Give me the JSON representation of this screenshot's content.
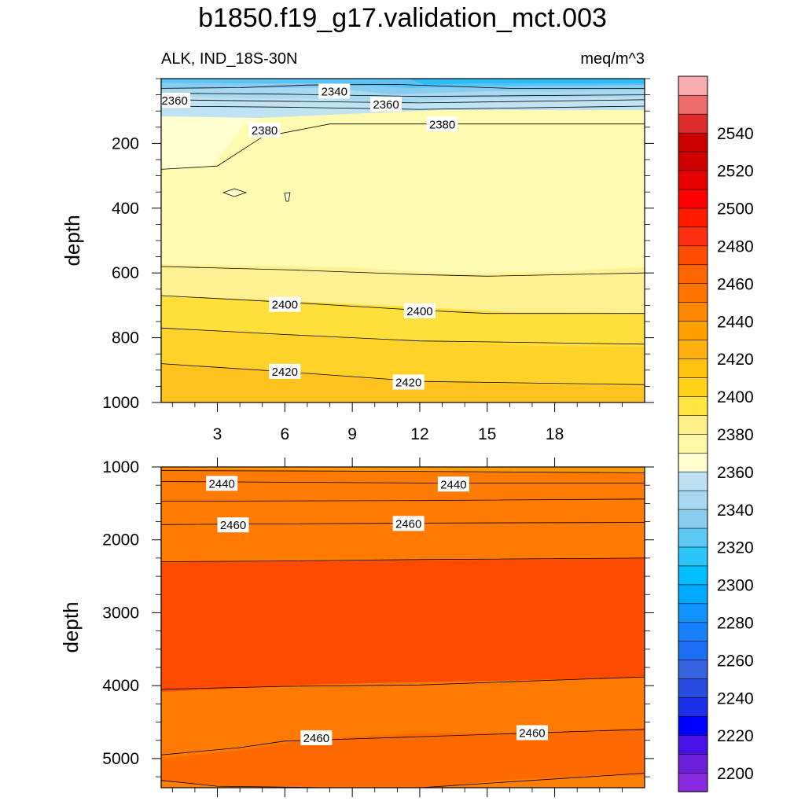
{
  "page_title": "b1850.f19_g17.validation_mct.003",
  "chart_data": [
    {
      "type": "contour",
      "panel": "upper",
      "title": "b1850.f19_g17.validation_mct.003",
      "left_subtitle": "ALK, IND_18S-30N",
      "right_subtitle": "meq/m^3",
      "xlabel": "",
      "ylabel": "depth",
      "xlim": [
        0.5,
        22
      ],
      "ylim": [
        0,
        1000
      ],
      "y_inverted": true,
      "x_ticks": [
        3,
        6,
        9,
        12,
        15,
        18
      ],
      "x_tick_labels": [
        "3",
        "6",
        "9",
        "12",
        "15",
        "18"
      ],
      "y_ticks": [
        200,
        400,
        600,
        800,
        1000
      ],
      "y_tick_labels": [
        "200",
        "400",
        "600",
        "800",
        "1000"
      ],
      "contour_lines": [
        {
          "level": 2340,
          "x": [
            0.5,
            4,
            7,
            11,
            16,
            22
          ],
          "depth": [
            30,
            28,
            20,
            18,
            30,
            30
          ]
        },
        {
          "level": 2350,
          "x": [
            0.5,
            6,
            12,
            22
          ],
          "depth": [
            45,
            48,
            55,
            50
          ]
        },
        {
          "level": 2360,
          "x": [
            0.5,
            6,
            12,
            22
          ],
          "depth": [
            65,
            70,
            75,
            65
          ]
        },
        {
          "level": 2370,
          "x": [
            0.5,
            6,
            12,
            22
          ],
          "depth": [
            85,
            88,
            95,
            85
          ]
        },
        {
          "level": 2380,
          "x": [
            0.5,
            3,
            5,
            8,
            12,
            22
          ],
          "depth": [
            280,
            270,
            180,
            140,
            140,
            140
          ]
        },
        {
          "level": 2390,
          "x": [
            0.5,
            6,
            12,
            15,
            22
          ],
          "depth": [
            580,
            590,
            605,
            610,
            600
          ]
        },
        {
          "level": 2400,
          "x": [
            0.5,
            6,
            12,
            15,
            22
          ],
          "depth": [
            670,
            690,
            715,
            725,
            725
          ]
        },
        {
          "level": 2410,
          "x": [
            0.5,
            6,
            12,
            22
          ],
          "depth": [
            770,
            790,
            810,
            820
          ]
        },
        {
          "level": 2420,
          "x": [
            0.5,
            6,
            12,
            22
          ],
          "depth": [
            880,
            905,
            935,
            945
          ]
        }
      ],
      "contour_labels": [
        {
          "text": "2340",
          "x": 8.2,
          "depth": 40
        },
        {
          "text": "2360",
          "x": 1.1,
          "depth": 68
        },
        {
          "text": "2360",
          "x": 10.5,
          "depth": 80
        },
        {
          "text": "2380",
          "x": 5.1,
          "depth": 160
        },
        {
          "text": "2380",
          "x": 13.0,
          "depth": 142
        },
        {
          "text": "2400",
          "x": 6.0,
          "depth": 698
        },
        {
          "text": "2400",
          "x": 12.0,
          "depth": 718
        },
        {
          "text": "2420",
          "x": 6.0,
          "depth": 905
        },
        {
          "text": "2420",
          "x": 11.5,
          "depth": 938
        }
      ]
    },
    {
      "type": "contour",
      "panel": "lower",
      "xlabel": "",
      "ylabel": "depth",
      "xlim": [
        0.5,
        22
      ],
      "ylim": [
        1000,
        5400
      ],
      "y_inverted": true,
      "x_ticks": [
        3,
        6,
        9,
        12,
        15,
        18
      ],
      "y_ticks": [
        1000,
        2000,
        3000,
        4000,
        5000
      ],
      "y_tick_labels": [
        "1000",
        "2000",
        "3000",
        "4000",
        "5000"
      ],
      "contour_lines": [
        {
          "level": 2430,
          "x": [
            0.5,
            12,
            22
          ],
          "depth": [
            1050,
            1060,
            1080
          ]
        },
        {
          "level": 2440,
          "x": [
            0.5,
            12,
            22
          ],
          "depth": [
            1200,
            1220,
            1220
          ]
        },
        {
          "level": 2450,
          "x": [
            0.5,
            12,
            22
          ],
          "depth": [
            1470,
            1460,
            1440
          ]
        },
        {
          "level": 2460,
          "x": [
            0.5,
            12,
            22
          ],
          "depth": [
            1790,
            1770,
            1760
          ]
        },
        {
          "level": 2470,
          "x": [
            0.5,
            6,
            12,
            22
          ],
          "depth": [
            2300,
            2290,
            2270,
            2250
          ]
        },
        {
          "level": 2470,
          "x": [
            0.5,
            6,
            12,
            22
          ],
          "depth": [
            4050,
            4010,
            3990,
            3880
          ]
        },
        {
          "level": 2460,
          "x": [
            0.5,
            4,
            6,
            12,
            22
          ],
          "depth": [
            4950,
            4850,
            4760,
            4700,
            4600
          ]
        },
        {
          "level": 2450,
          "x": [
            0.5,
            3,
            8,
            12,
            17,
            22
          ],
          "depth": [
            5300,
            5380,
            5400,
            5400,
            5300,
            5200
          ]
        }
      ],
      "contour_labels": [
        {
          "text": "2440",
          "x": 3.2,
          "depth": 1230
        },
        {
          "text": "2440",
          "x": 13.5,
          "depth": 1240
        },
        {
          "text": "2460",
          "x": 3.7,
          "depth": 1800
        },
        {
          "text": "2460",
          "x": 11.5,
          "depth": 1780
        },
        {
          "text": "2460",
          "x": 7.4,
          "depth": 4720
        },
        {
          "text": "2460",
          "x": 17.0,
          "depth": 4650
        }
      ]
    }
  ],
  "colorbar": {
    "tick_labels": [
      "2200",
      "2220",
      "2240",
      "2260",
      "2280",
      "2300",
      "2320",
      "2340",
      "2360",
      "2380",
      "2400",
      "2420",
      "2440",
      "2460",
      "2480",
      "2500",
      "2520",
      "2540"
    ],
    "colors": [
      "#8a2be2",
      "#6a1fd8",
      "#4a10e8",
      "#0000ff",
      "#1b2fe8",
      "#2a4be0",
      "#3762e0",
      "#1e6ef5",
      "#1880ff",
      "#0f94ff",
      "#00aaff",
      "#00beff",
      "#2ac6f8",
      "#5cc8f4",
      "#8bcdee",
      "#a9d7ef",
      "#bde1f2",
      "#ffffd0",
      "#fff7a6",
      "#fff08a",
      "#ffe442",
      "#ffd21a",
      "#ffc20e",
      "#ffb10f",
      "#ff9f00",
      "#ff8800",
      "#ff7300",
      "#ff6600",
      "#ff4c00",
      "#ff3010",
      "#ff1a00",
      "#ff0000",
      "#e60000",
      "#d00000",
      "#cc0000",
      "#dd2a2a",
      "#ec6b6b",
      "#f7adad"
    ]
  }
}
